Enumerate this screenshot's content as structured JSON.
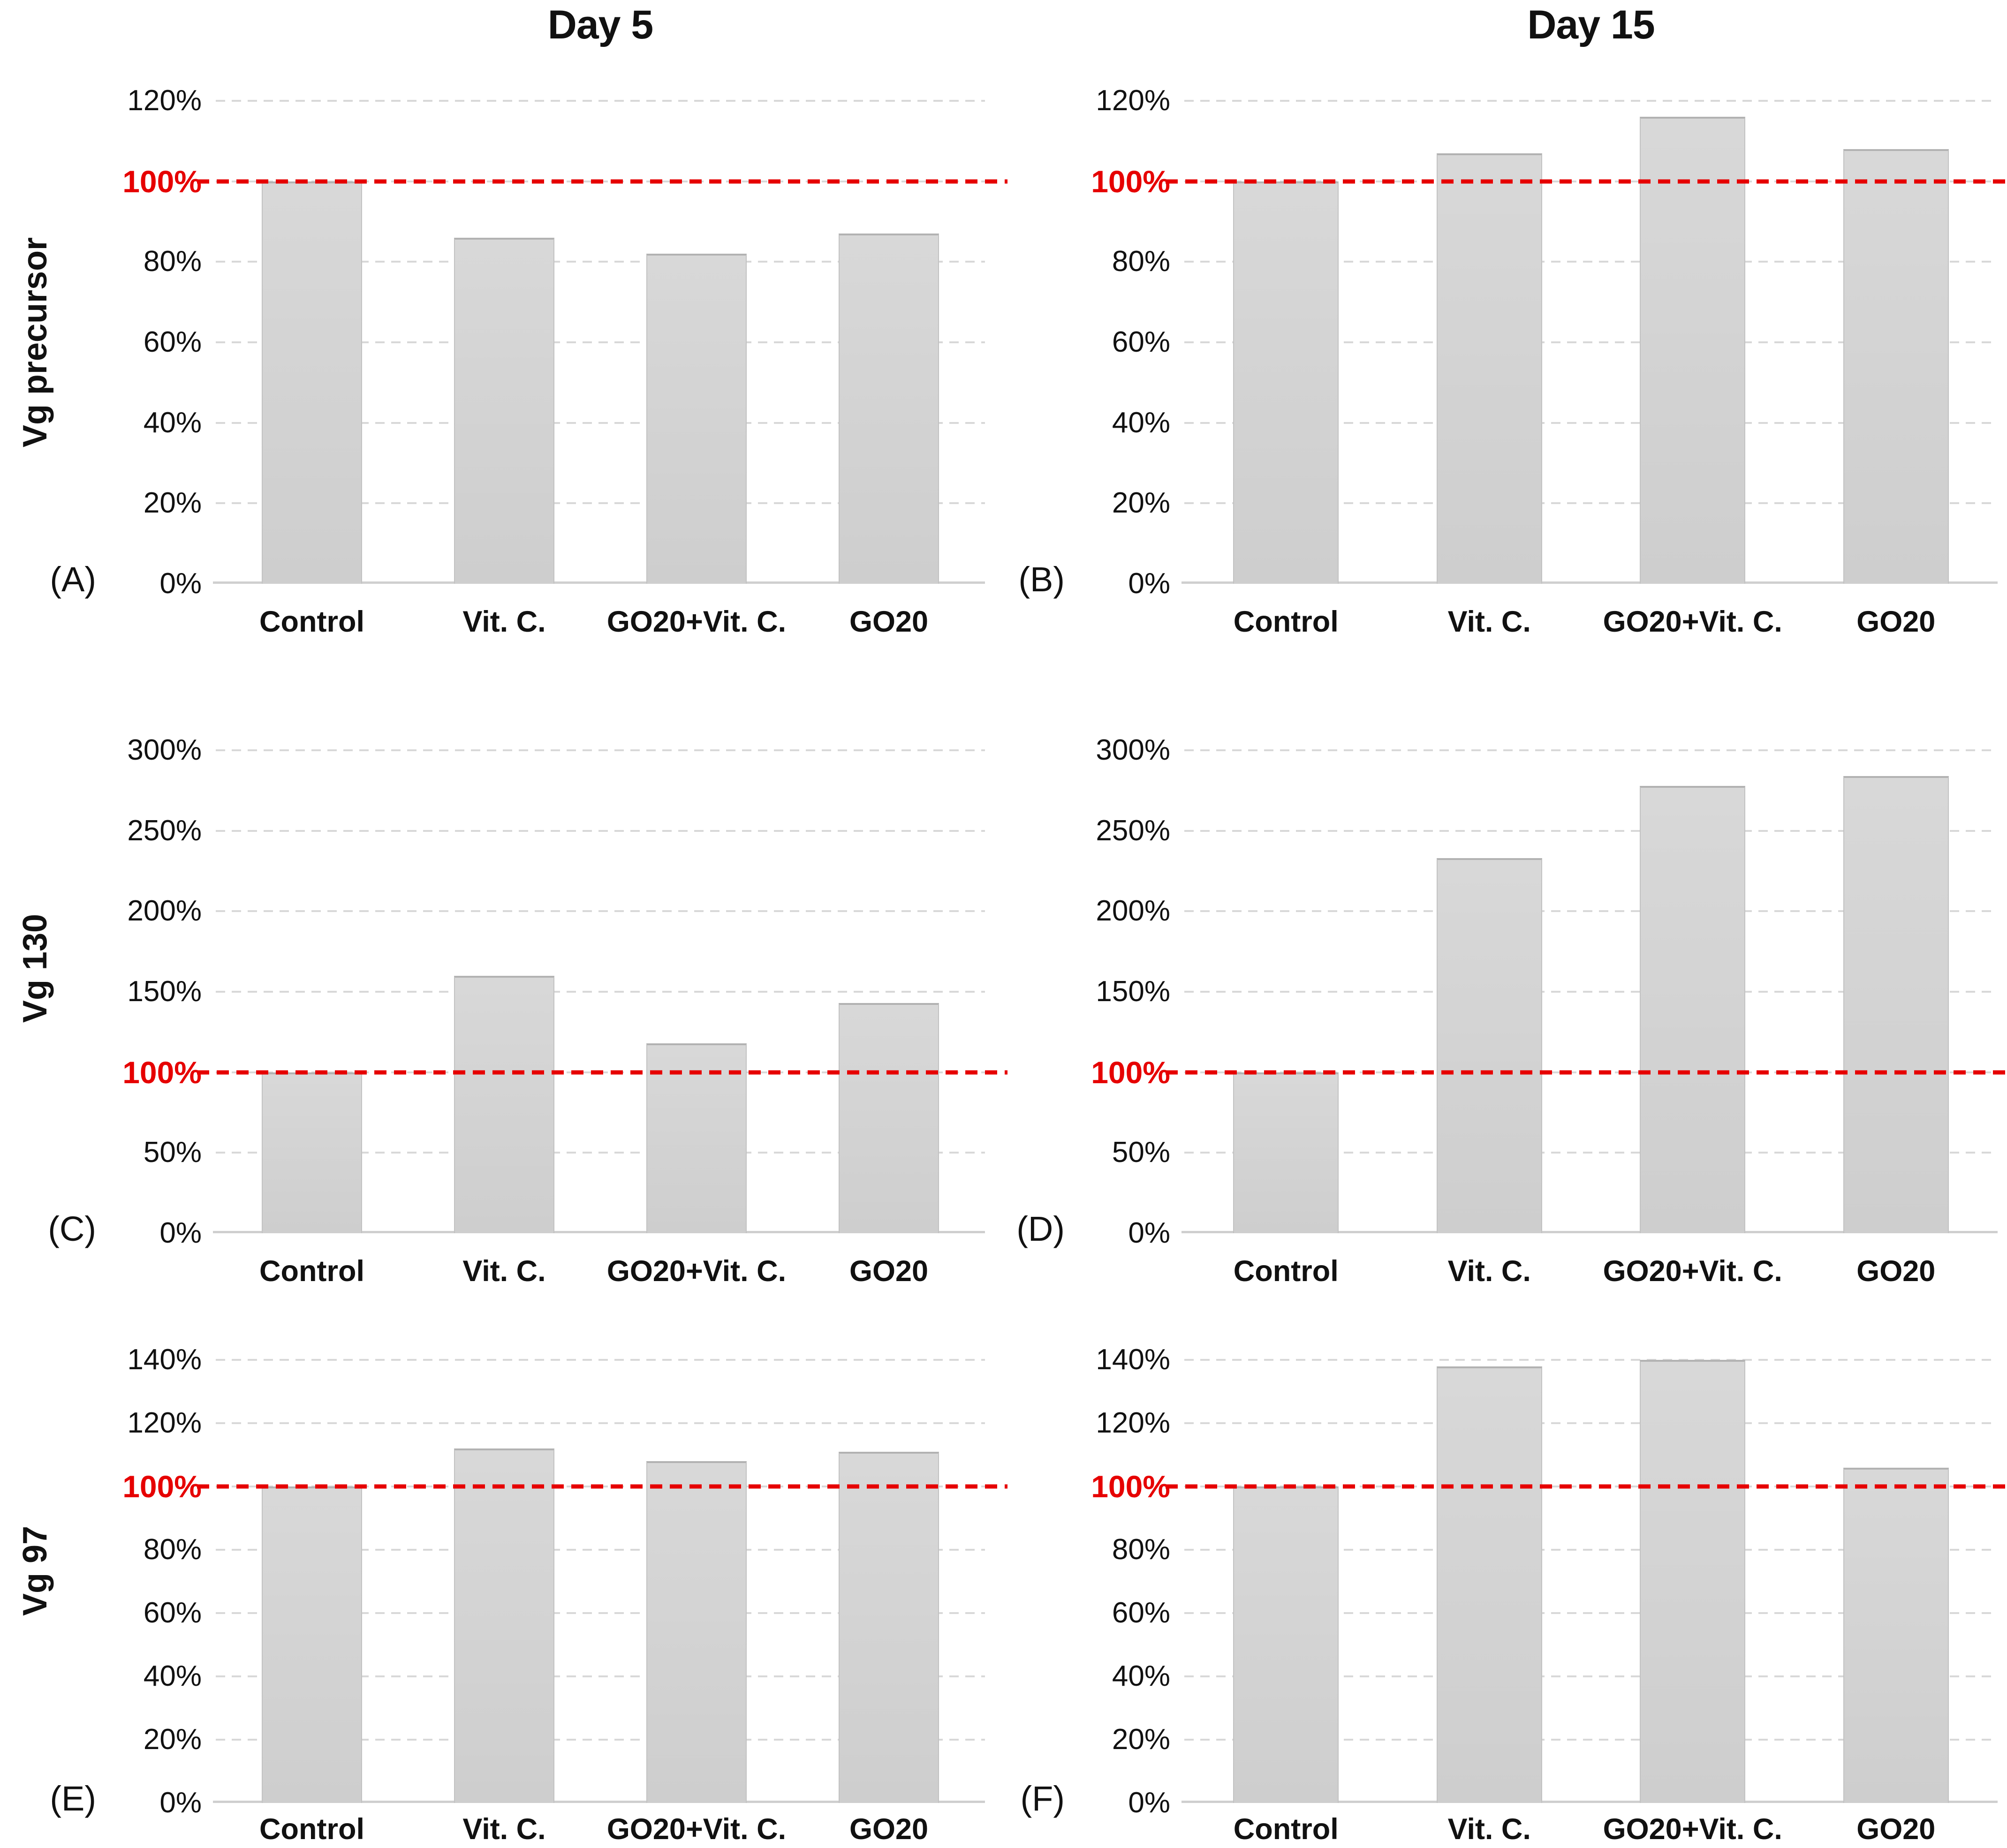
{
  "figure": {
    "column_titles": [
      "Day 5",
      "Day 15"
    ],
    "row_labels": [
      "Vg precursor",
      "Vg 130",
      "Vg 97"
    ],
    "categories": [
      "Control",
      "Vit. C.",
      "GO20+Vit. C.",
      "GO20"
    ],
    "colors": {
      "bar_fill": "#d2d2d2",
      "bar_edge": "#b2b2b2",
      "gridline": "#d8d8d8",
      "reference_line": "#e60000",
      "text": "#111111"
    },
    "reference_line": {
      "value": 100,
      "label": "100%",
      "style": "dashed"
    }
  },
  "chart_data": [
    {
      "panel_label": "(A)",
      "type": "bar",
      "column": "Day 5",
      "row": "Vg precursor",
      "categories": [
        "Control",
        "Vit. C.",
        "GO20+Vit. C.",
        "GO20"
      ],
      "values": [
        100,
        86,
        82,
        87
      ],
      "unit": "%",
      "ylim": [
        0,
        120
      ],
      "grid": true,
      "reference_value": 100,
      "yticks": [
        {
          "value": 0,
          "label": "0%"
        },
        {
          "value": 20,
          "label": "20%"
        },
        {
          "value": 40,
          "label": "40%"
        },
        {
          "value": 60,
          "label": "60%"
        },
        {
          "value": 80,
          "label": "80%"
        },
        {
          "value": 100,
          "label": "100%"
        },
        {
          "value": 120,
          "label": "120%"
        }
      ]
    },
    {
      "panel_label": "(B)",
      "type": "bar",
      "column": "Day 15",
      "row": "Vg precursor",
      "categories": [
        "Control",
        "Vit. C.",
        "GO20+Vit. C.",
        "GO20"
      ],
      "values": [
        100,
        107,
        116,
        108
      ],
      "unit": "%",
      "ylim": [
        0,
        120
      ],
      "grid": true,
      "reference_value": 100,
      "yticks": [
        {
          "value": 0,
          "label": "0%"
        },
        {
          "value": 20,
          "label": "20%"
        },
        {
          "value": 40,
          "label": "40%"
        },
        {
          "value": 60,
          "label": "60%"
        },
        {
          "value": 80,
          "label": "80%"
        },
        {
          "value": 100,
          "label": "100%"
        },
        {
          "value": 120,
          "label": "120%"
        }
      ]
    },
    {
      "panel_label": "(C)",
      "type": "bar",
      "column": "Day 5",
      "row": "Vg 130",
      "categories": [
        "Control",
        "Vit. C.",
        "GO20+Vit. C.",
        "GO20"
      ],
      "values": [
        100,
        160,
        118,
        143
      ],
      "unit": "%",
      "ylim": [
        0,
        300
      ],
      "grid": true,
      "reference_value": 100,
      "yticks": [
        {
          "value": 0,
          "label": "0%"
        },
        {
          "value": 50,
          "label": "50%"
        },
        {
          "value": 100,
          "label": "100%"
        },
        {
          "value": 150,
          "label": "150%"
        },
        {
          "value": 200,
          "label": "200%"
        },
        {
          "value": 250,
          "label": "250%"
        },
        {
          "value": 300,
          "label": "300%"
        }
      ]
    },
    {
      "panel_label": "(D)",
      "type": "bar",
      "column": "Day 15",
      "row": "Vg 130",
      "categories": [
        "Control",
        "Vit. C.",
        "GO20+Vit. C.",
        "GO20"
      ],
      "values": [
        100,
        233,
        278,
        284
      ],
      "unit": "%",
      "ylim": [
        0,
        300
      ],
      "grid": true,
      "reference_value": 100,
      "yticks": [
        {
          "value": 0,
          "label": "0%"
        },
        {
          "value": 50,
          "label": "50%"
        },
        {
          "value": 100,
          "label": "100%"
        },
        {
          "value": 150,
          "label": "150%"
        },
        {
          "value": 200,
          "label": "200%"
        },
        {
          "value": 250,
          "label": "250%"
        },
        {
          "value": 300,
          "label": "300%"
        }
      ]
    },
    {
      "panel_label": "(E)",
      "type": "bar",
      "column": "Day 5",
      "row": "Vg 97",
      "categories": [
        "Control",
        "Vit. C.",
        "GO20+Vit. C.",
        "GO20"
      ],
      "values": [
        100,
        112,
        108,
        111
      ],
      "unit": "%",
      "ylim": [
        0,
        140
      ],
      "grid": true,
      "reference_value": 100,
      "yticks": [
        {
          "value": 0,
          "label": "0%"
        },
        {
          "value": 20,
          "label": "20%"
        },
        {
          "value": 40,
          "label": "40%"
        },
        {
          "value": 60,
          "label": "60%"
        },
        {
          "value": 80,
          "label": "80%"
        },
        {
          "value": 100,
          "label": "100%"
        },
        {
          "value": 120,
          "label": "120%"
        },
        {
          "value": 140,
          "label": "140%"
        }
      ]
    },
    {
      "panel_label": "(F)",
      "type": "bar",
      "column": "Day 15",
      "row": "Vg 97",
      "categories": [
        "Control",
        "Vit. C.",
        "GO20+Vit. C.",
        "GO20"
      ],
      "values": [
        100,
        138,
        140,
        106
      ],
      "unit": "%",
      "ylim": [
        0,
        140
      ],
      "grid": true,
      "reference_value": 100,
      "yticks": [
        {
          "value": 0,
          "label": "0%"
        },
        {
          "value": 20,
          "label": "20%"
        },
        {
          "value": 40,
          "label": "40%"
        },
        {
          "value": 60,
          "label": "60%"
        },
        {
          "value": 80,
          "label": "80%"
        },
        {
          "value": 100,
          "label": "100%"
        },
        {
          "value": 120,
          "label": "120%"
        },
        {
          "value": 140,
          "label": "140%"
        }
      ]
    }
  ]
}
